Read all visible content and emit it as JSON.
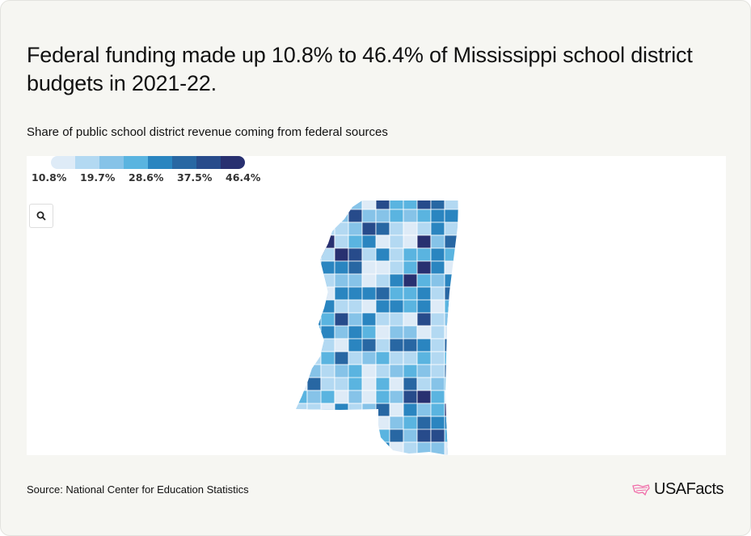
{
  "title": "Federal funding made up 10.8% to 46.4% of Mississippi school district budgets in 2021-22.",
  "subtitle": "Share of public school district revenue coming from federal sources",
  "legend": {
    "ticks": [
      "10.8%",
      "19.7%",
      "28.6%",
      "37.5%",
      "46.4%"
    ],
    "colors": [
      "#deebf7",
      "#b3d9f2",
      "#86c3e8",
      "#5ab4e0",
      "#2a85c0",
      "#2867a3",
      "#274b8b",
      "#283070"
    ]
  },
  "map": {
    "region": "Mississippi",
    "unit": "school district",
    "boundary_color": "#ffffff"
  },
  "controls": {
    "zoom_icon": "search-icon"
  },
  "source": "Source: National Center for Education Statistics",
  "brand": {
    "name": "USAFacts",
    "logo_color": "#f06ba8"
  }
}
